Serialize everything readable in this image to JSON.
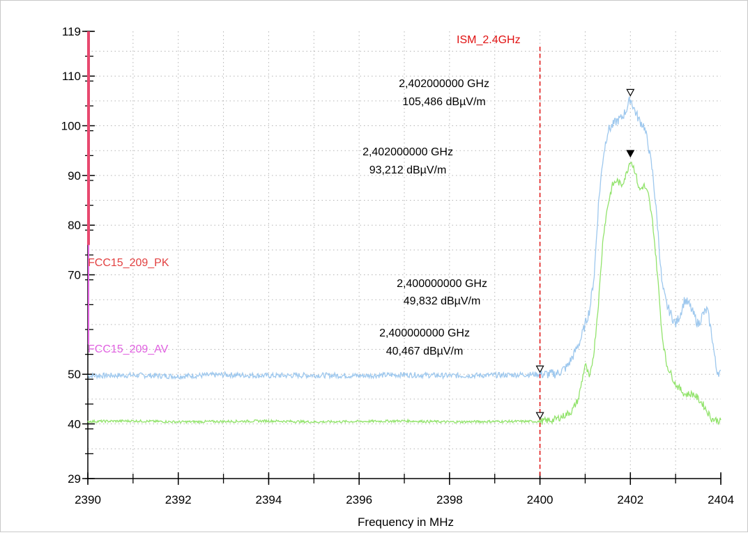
{
  "chart_data": {
    "type": "line",
    "xlabel": "Frequency in MHz",
    "ylabel": "",
    "xlim": [
      2390,
      2404
    ],
    "ylim": [
      29,
      119
    ],
    "x_ticks": [
      2390,
      2392,
      2394,
      2396,
      2398,
      2400,
      2402,
      2404
    ],
    "x_tick_labels": [
      "2390",
      "2392",
      "2394",
      "2396",
      "2398",
      "2400",
      "2402",
      "2404"
    ],
    "y_ticks": [
      29,
      40,
      50,
      70,
      80,
      90,
      100,
      110,
      119
    ],
    "y_tick_labels": [
      "29",
      "40",
      "50",
      "70",
      "80",
      "90",
      "100",
      "110",
      "119"
    ],
    "grid": true,
    "series": [
      {
        "color": "#9ec8ee",
        "x": [
          2390,
          2391,
          2392,
          2393,
          2394,
          2395,
          2396,
          2397,
          2398,
          2399,
          2400,
          2400.2,
          2400.4,
          2400.6,
          2400.75,
          2400.9,
          2401.0,
          2401.1,
          2401.2,
          2401.3,
          2401.4,
          2401.5,
          2401.6,
          2401.7,
          2401.8,
          2401.9,
          2402.0,
          2402.1,
          2402.2,
          2402.3,
          2402.4,
          2402.5,
          2402.6,
          2402.7,
          2402.8,
          2402.9,
          2403.0,
          2403.1,
          2403.2,
          2403.3,
          2403.4,
          2403.5,
          2403.6,
          2403.7,
          2403.8,
          2403.9,
          2404
        ],
        "y": [
          49.7,
          49.8,
          49.6,
          49.9,
          49.7,
          49.8,
          49.7,
          49.9,
          49.7,
          49.8,
          50.0,
          50.0,
          50.2,
          51.5,
          54,
          57,
          60,
          63,
          70,
          85,
          94,
          99,
          100,
          101,
          101.5,
          103,
          105.5,
          103,
          101,
          100,
          96,
          90,
          80,
          68,
          64,
          62,
          60,
          62,
          65,
          64,
          62,
          60,
          62,
          63,
          58,
          51,
          50
        ]
      },
      {
        "color": "#92e36c",
        "x": [
          2390,
          2391,
          2392,
          2393,
          2394,
          2395,
          2396,
          2397,
          2398,
          2399,
          2400,
          2400.3,
          2400.5,
          2400.7,
          2400.85,
          2401.0,
          2401.1,
          2401.2,
          2401.3,
          2401.4,
          2401.5,
          2401.6,
          2401.7,
          2401.8,
          2401.9,
          2402.0,
          2402.1,
          2402.2,
          2402.3,
          2402.4,
          2402.5,
          2402.6,
          2402.7,
          2402.8,
          2402.9,
          2403.0,
          2403.1,
          2403.2,
          2403.3,
          2403.4,
          2403.5,
          2403.6,
          2403.7,
          2403.8,
          2403.9,
          2404
        ],
        "y": [
          40.5,
          40.6,
          40.4,
          40.5,
          40.6,
          40.4,
          40.5,
          40.6,
          40.4,
          40.5,
          40.5,
          40.8,
          41.5,
          42.5,
          45,
          52,
          49,
          55,
          65,
          78,
          84,
          88,
          89,
          88,
          90,
          93.2,
          91,
          87,
          88,
          86,
          80,
          70,
          58,
          52,
          50,
          48,
          47,
          46,
          46,
          46,
          45,
          44,
          42.5,
          41,
          40.8,
          40.5
        ]
      }
    ],
    "limit_lines": [
      {
        "name": "FCC15_209_PK",
        "color": "#e8486f",
        "label_color": "#e24040"
      },
      {
        "name": "FCC15_209_AV",
        "color": "#e060e0",
        "label_color": "#e060e0"
      }
    ],
    "vertical_markers": [
      {
        "x": 2400,
        "label": "ISM_2.4GHz",
        "color": "#e01010"
      }
    ],
    "marker_points": [
      {
        "x": 2402,
        "y": 105.486,
        "filled": false
      },
      {
        "x": 2402,
        "y": 93.212,
        "filled": true
      },
      {
        "x": 2400,
        "y": 49.832,
        "filled": false
      },
      {
        "x": 2400,
        "y": 40.467,
        "filled": false
      }
    ],
    "annotations": [
      {
        "freq": "2,402000000 GHz",
        "level": "105,486 dBµV/m"
      },
      {
        "freq": "2,402000000 GHz",
        "level": "93,212 dBµV/m"
      },
      {
        "freq": "2,400000000 GHz",
        "level": "49,832 dBµV/m"
      },
      {
        "freq": "2,400000000 GHz",
        "level": "40,467 dBµV/m"
      }
    ]
  }
}
